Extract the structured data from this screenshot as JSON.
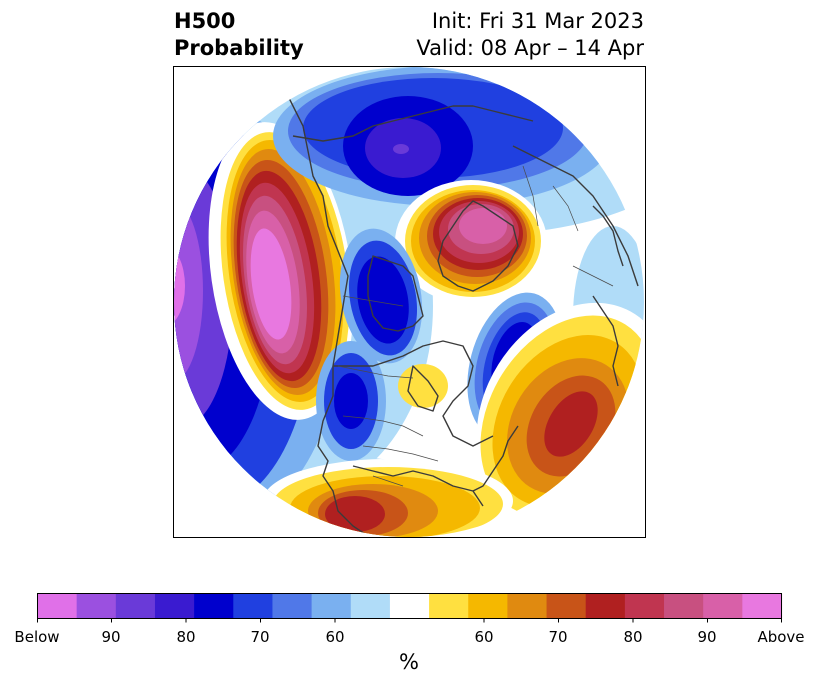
{
  "header": {
    "title_line1": "H500",
    "title_line2": "Probability",
    "init_text": "Init: Fri 31 Mar 2023",
    "valid_text": "Valid: 08 Apr – 14 Apr"
  },
  "map": {
    "projection": "north-polar-stereographic",
    "field": "500 hPa height anomaly probability",
    "anomalies": [
      {
        "name": "west-canada-ridge",
        "sign": "above",
        "max_level": "Above"
      },
      {
        "name": "arctic-siberia-high",
        "sign": "above",
        "max_level": "90"
      },
      {
        "name": "north-atlantic-ridge",
        "sign": "above",
        "max_level": "80"
      },
      {
        "name": "southern-us-ridge",
        "sign": "above",
        "max_level": "80"
      },
      {
        "name": "north-pacific-trough",
        "sign": "below",
        "max_level": "90"
      },
      {
        "name": "north-siberia-trough",
        "sign": "below",
        "max_level": "90"
      },
      {
        "name": "hudson-bay-trough",
        "sign": "below",
        "max_level": "80"
      },
      {
        "name": "north-atlantic-trough",
        "sign": "below",
        "max_level": "80"
      },
      {
        "name": "central-us-trough",
        "sign": "below",
        "max_level": "80"
      }
    ]
  },
  "colorbar": {
    "unit": "%",
    "labels": [
      "Below",
      "90",
      "80",
      "70",
      "60",
      "60",
      "70",
      "80",
      "90",
      "Above"
    ],
    "colors": [
      "#e070e8",
      "#9b50e0",
      "#6a3ad8",
      "#3a1bd0",
      "#0000cd",
      "#2040e0",
      "#5078e8",
      "#7ab0f0",
      "#b0dcf8",
      "#ffffff",
      "#ffe040",
      "#f5b800",
      "#e08a10",
      "#c85418",
      "#b02020",
      "#c03550",
      "#c85080",
      "#d860a8",
      "#e878e0"
    ]
  },
  "legend": {
    "colors": {
      "below_strong": "#e070e8",
      "below_mid": "#0000cd",
      "below_weak": "#b0dcf8",
      "neutral": "#ffffff",
      "above_weak": "#ffe040",
      "above_mid": "#b02020",
      "above_strong": "#e878e0"
    }
  }
}
